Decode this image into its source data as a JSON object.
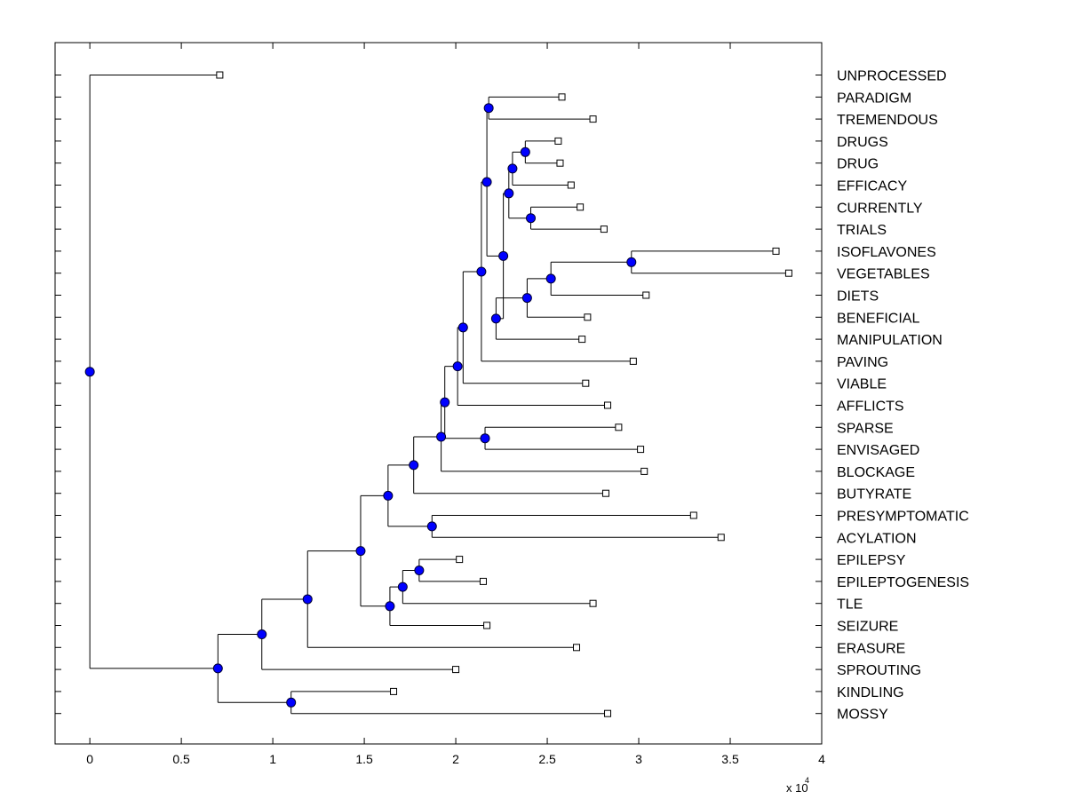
{
  "chart_data": {
    "type": "dendrogram",
    "orientation": "horizontal",
    "x_axis": {
      "xlim": [
        -0.19,
        4.0
      ],
      "ticks": [
        0,
        0.5,
        1,
        1.5,
        2,
        2.5,
        3,
        3.5,
        4
      ],
      "tick_labels": [
        "0",
        "0.5",
        "1",
        "1.5",
        "2",
        "2.5",
        "3",
        "3.5",
        "4"
      ],
      "multiplier_base": "x 10",
      "multiplier_exponent": "4"
    },
    "leaves": [
      {
        "label": "UNPROCESSED",
        "x": 0.71
      },
      {
        "label": "PARADIGM",
        "x": 2.58
      },
      {
        "label": "TREMENDOUS",
        "x": 2.75
      },
      {
        "label": "DRUGS",
        "x": 2.56
      },
      {
        "label": "DRUG",
        "x": 2.57
      },
      {
        "label": "EFFICACY",
        "x": 2.63
      },
      {
        "label": "CURRENTLY",
        "x": 2.68
      },
      {
        "label": "TRIALS",
        "x": 2.81
      },
      {
        "label": "ISOFLAVONES",
        "x": 3.75
      },
      {
        "label": "VEGETABLES",
        "x": 3.82
      },
      {
        "label": "DIETS",
        "x": 3.04
      },
      {
        "label": "BENEFICIAL",
        "x": 2.72
      },
      {
        "label": "MANIPULATION",
        "x": 2.69
      },
      {
        "label": "PAVING",
        "x": 2.97
      },
      {
        "label": "VIABLE",
        "x": 2.71
      },
      {
        "label": "AFFLICTS",
        "x": 2.83
      },
      {
        "label": "SPARSE",
        "x": 2.89
      },
      {
        "label": "ENVISAGED",
        "x": 3.01
      },
      {
        "label": "BLOCKAGE",
        "x": 3.03
      },
      {
        "label": "BUTYRATE",
        "x": 2.82
      },
      {
        "label": "PRESYMPTOMATIC",
        "x": 3.3
      },
      {
        "label": "ACYLATION",
        "x": 3.45
      },
      {
        "label": "EPILEPSY",
        "x": 2.02
      },
      {
        "label": "EPILEPTOGENESIS",
        "x": 2.15
      },
      {
        "label": "TLE",
        "x": 2.75
      },
      {
        "label": "SEIZURE",
        "x": 2.17
      },
      {
        "label": "ERASURE",
        "x": 2.66
      },
      {
        "label": "SPROUTING",
        "x": 2.0
      },
      {
        "label": "KINDLING",
        "x": 1.66
      },
      {
        "label": "MOSSY",
        "x": 2.83
      }
    ],
    "merges": [
      {
        "id": "A",
        "x": 2.18,
        "children": [
          "L:PARADIGM",
          "L:TREMENDOUS"
        ]
      },
      {
        "id": "B",
        "x": 2.38,
        "children": [
          "L:DRUGS",
          "L:DRUG"
        ]
      },
      {
        "id": "C",
        "x": 2.31,
        "children": [
          "N:B",
          "L:EFFICACY"
        ]
      },
      {
        "id": "D",
        "x": 2.41,
        "children": [
          "L:CURRENTLY",
          "L:TRIALS"
        ]
      },
      {
        "id": "E",
        "x": 2.29,
        "children": [
          "N:C",
          "N:D"
        ]
      },
      {
        "id": "F",
        "x": 2.96,
        "children": [
          "L:ISOFLAVONES",
          "L:VEGETABLES"
        ]
      },
      {
        "id": "G",
        "x": 2.52,
        "children": [
          "N:F",
          "L:DIETS"
        ]
      },
      {
        "id": "H",
        "x": 2.39,
        "children": [
          "N:G",
          "L:BENEFICIAL"
        ]
      },
      {
        "id": "I",
        "x": 2.22,
        "children": [
          "N:H",
          "L:MANIPULATION"
        ]
      },
      {
        "id": "J",
        "x": 2.26,
        "children": [
          "N:E",
          "N:I"
        ]
      },
      {
        "id": "K",
        "x": 2.17,
        "children": [
          "N:A",
          "N:J"
        ]
      },
      {
        "id": "L",
        "x": 2.14,
        "children": [
          "N:K",
          "L:PAVING"
        ]
      },
      {
        "id": "M",
        "x": 2.04,
        "children": [
          "N:L",
          "L:VIABLE"
        ]
      },
      {
        "id": "N",
        "x": 2.01,
        "children": [
          "N:M",
          "L:AFFLICTS"
        ]
      },
      {
        "id": "O",
        "x": 2.16,
        "children": [
          "L:SPARSE",
          "L:ENVISAGED"
        ]
      },
      {
        "id": "P",
        "x": 1.94,
        "children": [
          "N:N",
          "N:O"
        ]
      },
      {
        "id": "Q",
        "x": 1.92,
        "children": [
          "N:P",
          "L:BLOCKAGE"
        ]
      },
      {
        "id": "R",
        "x": 1.77,
        "children": [
          "N:Q",
          "L:BUTYRATE"
        ]
      },
      {
        "id": "S",
        "x": 1.87,
        "children": [
          "L:PRESYMPTOMATIC",
          "L:ACYLATION"
        ]
      },
      {
        "id": "T",
        "x": 1.63,
        "children": [
          "N:R",
          "N:S"
        ]
      },
      {
        "id": "U",
        "x": 1.8,
        "children": [
          "L:EPILEPSY",
          "L:EPILEPTOGENESIS"
        ]
      },
      {
        "id": "V",
        "x": 1.71,
        "children": [
          "N:U",
          "L:TLE"
        ]
      },
      {
        "id": "W",
        "x": 1.64,
        "children": [
          "N:V",
          "L:SEIZURE"
        ]
      },
      {
        "id": "X",
        "x": 1.48,
        "children": [
          "N:T",
          "N:W"
        ]
      },
      {
        "id": "Y",
        "x": 1.19,
        "children": [
          "N:X",
          "L:ERASURE"
        ]
      },
      {
        "id": "Z",
        "x": 0.94,
        "children": [
          "N:Y",
          "L:SPROUTING"
        ]
      },
      {
        "id": "AA",
        "x": 1.1,
        "children": [
          "L:KINDLING",
          "L:MOSSY"
        ]
      },
      {
        "id": "AB",
        "x": 0.7,
        "children": [
          "N:Z",
          "N:AA"
        ]
      },
      {
        "id": "ROOT",
        "x": 0.0,
        "children": [
          "L:UNPROCESSED",
          "N:AB"
        ]
      }
    ],
    "colors": {
      "node_fill": "#0000ff",
      "node_stroke": "#000033",
      "line": "#000000",
      "leaf_box_fill": "#ffffff"
    }
  }
}
